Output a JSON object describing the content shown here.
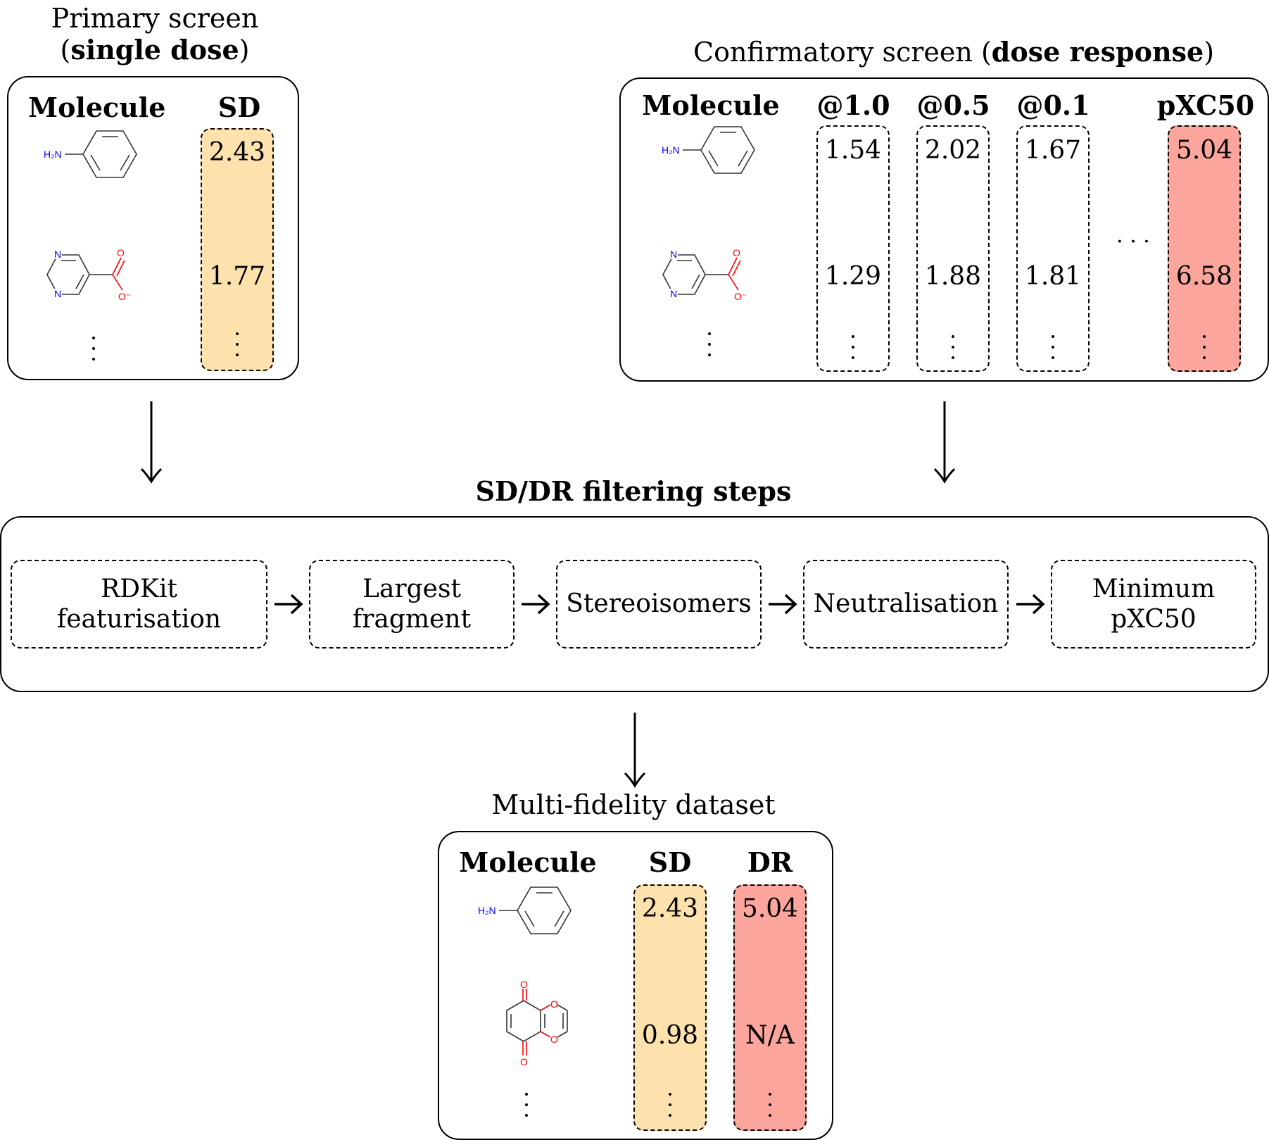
{
  "primary": {
    "title_main": "Primary screen",
    "title_paren_open": "(",
    "title_bold": "single dose",
    "title_paren_close": ")",
    "col_molecule": "Molecule",
    "col_sd": "SD",
    "rows": [
      {
        "molecule_icon": "aniline-structure",
        "sd": "2.43"
      },
      {
        "molecule_icon": "pyrimidine-carboxylate-structure",
        "sd": "1.77"
      }
    ]
  },
  "confirmatory": {
    "title_main": "Confirmatory screen (",
    "title_bold": "dose response",
    "title_paren_close": ")",
    "col_molecule": "Molecule",
    "col_d1": "@1.0",
    "col_d2": "@0.5",
    "col_d3": "@0.1",
    "col_pxc50": "pXC50",
    "hdots": "· · ·",
    "rows": [
      {
        "molecule_icon": "aniline-structure",
        "d1": "1.54",
        "d2": "2.02",
        "d3": "1.67",
        "pxc50": "5.04"
      },
      {
        "molecule_icon": "pyrimidine-carboxylate-structure",
        "d1": "1.29",
        "d2": "1.88",
        "d3": "1.81",
        "pxc50": "6.58"
      }
    ]
  },
  "filtering": {
    "title": "SD/DR filtering steps",
    "steps": [
      {
        "line1": "RDKit",
        "line2": "featurisation"
      },
      {
        "line1": "Largest",
        "line2": "fragment"
      },
      {
        "line1": "Stereoisomers",
        "line2": ""
      },
      {
        "line1": "Neutralisation",
        "line2": ""
      },
      {
        "line1": "Minimum",
        "line2": "pXC50"
      }
    ]
  },
  "dataset": {
    "title": "Multi-fidelity dataset",
    "col_molecule": "Molecule",
    "col_sd": "SD",
    "col_dr": "DR",
    "rows": [
      {
        "molecule_icon": "aniline-structure",
        "sd": "2.43",
        "dr": "5.04"
      },
      {
        "molecule_icon": "benzodioxine-dione-structure",
        "sd": "0.98",
        "dr": "N/A"
      }
    ]
  },
  "chem_labels": {
    "h2n": "H₂N",
    "n": "N",
    "o": "O",
    "o_minus": "O⁻"
  },
  "colors": {
    "sd_fill": "#fde2ad",
    "dr_fill": "#fba59c",
    "nitrogen": "#0000ff",
    "oxygen": "#ff0000",
    "bond": "#333333"
  }
}
